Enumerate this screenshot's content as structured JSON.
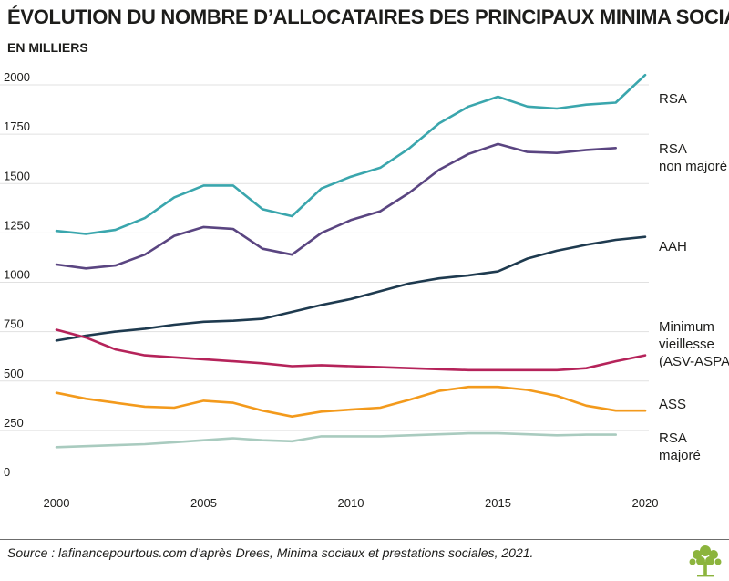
{
  "title": "ÉVOLUTION DU NOMBRE D’ALLOCATAIRES DES PRINCIPAUX MINIMA SOCIAUX",
  "subtitle": "EN MILLIERS",
  "source": "Source : lafinancepourtous.com d’après Drees, Minima sociaux et prestations sociales, 2021.",
  "logo_icon": "tree-icon",
  "chart_data": {
    "type": "line",
    "title": "ÉVOLUTION DU NOMBRE D’ALLOCATAIRES DES PRINCIPAUX MINIMA SOCIAUX",
    "subtitle": "EN MILLIERS",
    "xlabel": "",
    "ylabel": "",
    "xlim": [
      2000,
      2020
    ],
    "ylim": [
      0,
      2000
    ],
    "x_ticks": [
      2000,
      2005,
      2010,
      2015,
      2020
    ],
    "y_ticks": [
      0,
      250,
      500,
      750,
      1000,
      1250,
      1500,
      1750,
      2000
    ],
    "grid": "horizontal",
    "legend": "labels at right end of lines",
    "x": [
      2000,
      2001,
      2002,
      2003,
      2004,
      2005,
      2006,
      2007,
      2008,
      2009,
      2010,
      2011,
      2012,
      2013,
      2014,
      2015,
      2016,
      2017,
      2018,
      2019,
      2020
    ],
    "series": [
      {
        "name": "RSA",
        "color": "#3aa6ad",
        "values": [
          1260,
          1245,
          1265,
          1325,
          1430,
          1490,
          1490,
          1370,
          1335,
          1475,
          1535,
          1580,
          1680,
          1805,
          1890,
          1940,
          1890,
          1880,
          1900,
          1910,
          2050
        ]
      },
      {
        "name": "RSA non majoré",
        "color": "#5a4581",
        "values": [
          1090,
          1070,
          1085,
          1140,
          1235,
          1280,
          1270,
          1170,
          1140,
          1250,
          1315,
          1360,
          1455,
          1570,
          1650,
          1700,
          1660,
          1655,
          1670,
          1680,
          null
        ]
      },
      {
        "name": "AAH",
        "color": "#1e3a4f",
        "values": [
          705,
          730,
          750,
          765,
          785,
          800,
          805,
          815,
          850,
          885,
          915,
          955,
          995,
          1020,
          1035,
          1055,
          1120,
          1160,
          1190,
          1215,
          1230
        ]
      },
      {
        "name": "Minimum vieillesse (ASV-ASPA)",
        "color": "#b5235a",
        "values": [
          760,
          720,
          660,
          630,
          620,
          610,
          600,
          590,
          575,
          580,
          575,
          570,
          565,
          560,
          555,
          555,
          555,
          555,
          565,
          600,
          630
        ]
      },
      {
        "name": "ASS",
        "color": "#f39a1c",
        "values": [
          440,
          410,
          390,
          370,
          365,
          400,
          390,
          350,
          320,
          345,
          355,
          365,
          405,
          450,
          470,
          470,
          455,
          425,
          375,
          350,
          350
        ]
      },
      {
        "name": "RSA majoré",
        "color": "#a9cbbf",
        "values": [
          165,
          170,
          175,
          180,
          190,
          200,
          210,
          200,
          195,
          220,
          220,
          220,
          225,
          230,
          235,
          235,
          230,
          225,
          228,
          228,
          null
        ]
      }
    ],
    "series_labels": [
      {
        "lines": [
          "RSA"
        ]
      },
      {
        "lines": [
          "RSA",
          "non majoré"
        ]
      },
      {
        "lines": [
          "AAH"
        ]
      },
      {
        "lines": [
          "Minimum",
          "vieillesse",
          "(ASV-ASPA)"
        ]
      },
      {
        "lines": [
          "ASS"
        ]
      },
      {
        "lines": [
          "RSA",
          "majoré"
        ]
      }
    ]
  }
}
